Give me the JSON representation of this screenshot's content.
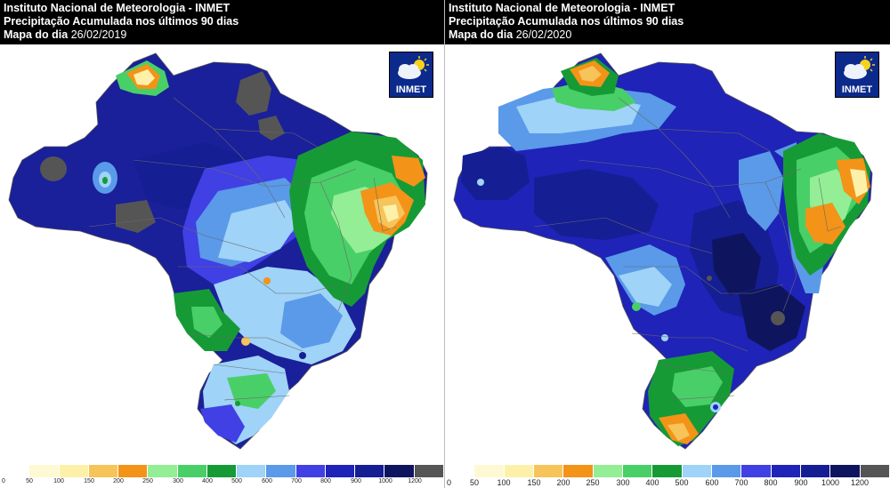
{
  "maps": [
    {
      "title_line1": "Instituto Nacional de Meteorologia - INMET",
      "title_line2": "Precipitação Acumulada nos últimos 90 dias",
      "date_label": "Mapa do dia",
      "date_value": "26/02/2019",
      "logo_text": "INMET",
      "legend_labels": [
        "0",
        "50",
        "100",
        "150",
        "200",
        "250",
        "300",
        "400",
        "500",
        "600",
        "700",
        "800",
        "900",
        "1000",
        "1200"
      ]
    },
    {
      "title_line1": "Instituto Nacional de Meteorologia - INMET",
      "title_line2": "Precipitação Acumulada nos últimos 90 dias",
      "date_label": "Mapa do dia",
      "date_value": "26/02/2020",
      "logo_text": "INMET",
      "legend_labels": [
        "0",
        "50",
        "100",
        "150",
        "200",
        "250",
        "300",
        "400",
        "500",
        "600",
        "700",
        "800",
        "900",
        "1000",
        "1200"
      ]
    }
  ],
  "legend_colors": [
    "#ffffff",
    "#fef9d2",
    "#fdf1a9",
    "#f7c45a",
    "#f39318",
    "#94ee95",
    "#49cf67",
    "#169a36",
    "#9fd3f7",
    "#5a9ae9",
    "#4040e4",
    "#1f23b8",
    "#151e93",
    "#0e155e",
    "#555555"
  ]
}
